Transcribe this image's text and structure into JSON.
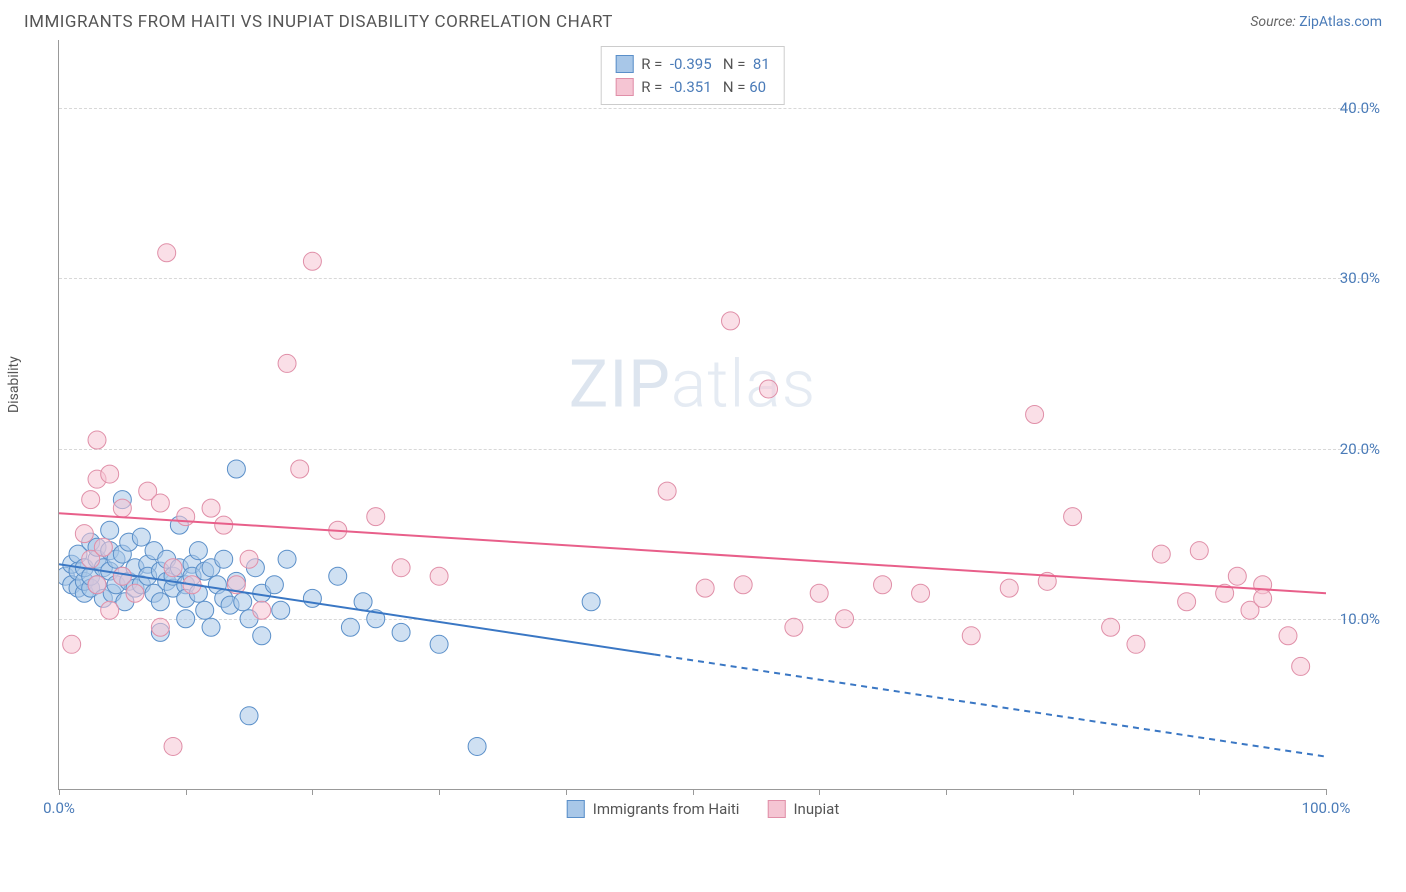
{
  "header": {
    "title": "IMMIGRANTS FROM HAITI VS INUPIAT DISABILITY CORRELATION CHART",
    "source_label": "Source:",
    "source_value": "ZipAtlas.com"
  },
  "chart": {
    "type": "scatter",
    "y_axis_label": "Disability",
    "x_range": [
      0,
      100
    ],
    "y_range": [
      0,
      44
    ],
    "x_ticks": [
      0,
      10,
      20,
      30,
      40,
      50,
      60,
      70,
      80,
      90,
      100
    ],
    "x_tick_labels": {
      "0": "0.0%",
      "100": "100.0%"
    },
    "y_gridlines": [
      10,
      20,
      30,
      40
    ],
    "y_tick_labels": {
      "10": "10.0%",
      "20": "20.0%",
      "30": "30.0%",
      "40": "40.0%"
    },
    "grid_color": "#d8d8d8",
    "background_color": "#ffffff",
    "watermark_text_1": "ZIP",
    "watermark_text_2": "atlas",
    "series": [
      {
        "name": "Immigrants from Haiti",
        "fill_color": "#a8c7e8",
        "stroke_color": "#5a8fc9",
        "fill_opacity": 0.55,
        "marker_radius": 9,
        "R": "-0.395",
        "N": "81",
        "trend": {
          "x1": 0,
          "y1": 13.2,
          "x2": 47,
          "y2": 7.9,
          "x3": 100,
          "y3": 1.9,
          "dash_from": 47,
          "color": "#3a77c4",
          "width": 2
        },
        "points": [
          [
            0.5,
            12.5
          ],
          [
            1,
            12.0
          ],
          [
            1,
            13.2
          ],
          [
            1.5,
            11.8
          ],
          [
            1.5,
            12.8
          ],
          [
            1.5,
            13.8
          ],
          [
            2,
            11.5
          ],
          [
            2,
            12.2
          ],
          [
            2,
            13.0
          ],
          [
            2.5,
            14.5
          ],
          [
            2.5,
            11.8
          ],
          [
            2.5,
            12.5
          ],
          [
            3,
            12.0
          ],
          [
            3,
            13.5
          ],
          [
            3,
            14.2
          ],
          [
            3.5,
            11.2
          ],
          [
            3.5,
            13.0
          ],
          [
            4,
            12.8
          ],
          [
            4,
            14.0
          ],
          [
            4,
            15.2
          ],
          [
            4.2,
            11.5
          ],
          [
            4.5,
            13.5
          ],
          [
            4.5,
            12.0
          ],
          [
            5,
            12.5
          ],
          [
            5,
            13.8
          ],
          [
            5,
            17.0
          ],
          [
            5.2,
            11.0
          ],
          [
            5.5,
            12.2
          ],
          [
            5.5,
            14.5
          ],
          [
            6,
            13.0
          ],
          [
            6,
            11.8
          ],
          [
            6.5,
            12.0
          ],
          [
            6.5,
            14.8
          ],
          [
            7,
            13.2
          ],
          [
            7,
            12.5
          ],
          [
            7.5,
            11.5
          ],
          [
            7.5,
            14.0
          ],
          [
            8,
            12.8
          ],
          [
            8,
            11.0
          ],
          [
            8,
            9.2
          ],
          [
            8.5,
            12.2
          ],
          [
            8.5,
            13.5
          ],
          [
            9,
            11.8
          ],
          [
            9,
            12.5
          ],
          [
            9.5,
            15.5
          ],
          [
            9.5,
            13.0
          ],
          [
            10,
            12.0
          ],
          [
            10,
            11.2
          ],
          [
            10,
            10.0
          ],
          [
            10.5,
            13.2
          ],
          [
            10.5,
            12.5
          ],
          [
            11,
            14.0
          ],
          [
            11,
            11.5
          ],
          [
            11.5,
            10.5
          ],
          [
            11.5,
            12.8
          ],
          [
            12,
            13.0
          ],
          [
            12,
            9.5
          ],
          [
            12.5,
            12.0
          ],
          [
            13,
            11.2
          ],
          [
            13,
            13.5
          ],
          [
            13.5,
            10.8
          ],
          [
            14,
            12.2
          ],
          [
            14,
            18.8
          ],
          [
            14.5,
            11.0
          ],
          [
            15,
            10.0
          ],
          [
            15.5,
            13.0
          ],
          [
            16,
            11.5
          ],
          [
            16,
            9.0
          ],
          [
            17,
            12.0
          ],
          [
            17.5,
            10.5
          ],
          [
            18,
            13.5
          ],
          [
            15,
            4.3
          ],
          [
            20,
            11.2
          ],
          [
            22,
            12.5
          ],
          [
            23,
            9.5
          ],
          [
            24,
            11.0
          ],
          [
            25,
            10.0
          ],
          [
            27,
            9.2
          ],
          [
            30,
            8.5
          ],
          [
            33,
            2.5
          ],
          [
            42,
            11.0
          ]
        ]
      },
      {
        "name": "Inupiat",
        "fill_color": "#f5c5d3",
        "stroke_color": "#e08fa8",
        "fill_opacity": 0.55,
        "marker_radius": 9,
        "R": "-0.351",
        "N": "60",
        "trend": {
          "x1": 0,
          "y1": 16.2,
          "x2": 100,
          "y2": 11.5,
          "color": "#e85f8a",
          "width": 2
        },
        "points": [
          [
            1,
            8.5
          ],
          [
            2,
            15.0
          ],
          [
            2.5,
            13.5
          ],
          [
            2.5,
            17.0
          ],
          [
            3,
            18.2
          ],
          [
            3,
            20.5
          ],
          [
            3,
            12.0
          ],
          [
            3.5,
            14.2
          ],
          [
            4,
            10.5
          ],
          [
            4,
            18.5
          ],
          [
            5,
            16.5
          ],
          [
            5,
            12.5
          ],
          [
            6,
            11.5
          ],
          [
            7,
            17.5
          ],
          [
            8,
            16.8
          ],
          [
            8,
            9.5
          ],
          [
            8.5,
            31.5
          ],
          [
            9,
            13.0
          ],
          [
            9,
            2.5
          ],
          [
            10,
            16.0
          ],
          [
            10.5,
            12.0
          ],
          [
            12,
            16.5
          ],
          [
            13,
            15.5
          ],
          [
            14,
            12.0
          ],
          [
            15,
            13.5
          ],
          [
            16,
            10.5
          ],
          [
            18,
            25.0
          ],
          [
            19,
            18.8
          ],
          [
            20,
            31.0
          ],
          [
            22,
            15.2
          ],
          [
            25,
            16.0
          ],
          [
            27,
            13.0
          ],
          [
            30,
            12.5
          ],
          [
            48,
            17.5
          ],
          [
            51,
            11.8
          ],
          [
            53,
            27.5
          ],
          [
            54,
            12.0
          ],
          [
            56,
            23.5
          ],
          [
            58,
            9.5
          ],
          [
            60,
            11.5
          ],
          [
            62,
            10.0
          ],
          [
            65,
            12.0
          ],
          [
            68,
            11.5
          ],
          [
            72,
            9.0
          ],
          [
            75,
            11.8
          ],
          [
            77,
            22.0
          ],
          [
            78,
            12.2
          ],
          [
            80,
            16.0
          ],
          [
            83,
            9.5
          ],
          [
            85,
            8.5
          ],
          [
            87,
            13.8
          ],
          [
            89,
            11.0
          ],
          [
            90,
            14.0
          ],
          [
            92,
            11.5
          ],
          [
            93,
            12.5
          ],
          [
            94,
            10.5
          ],
          [
            95,
            12.0
          ],
          [
            95,
            11.2
          ],
          [
            97,
            9.0
          ],
          [
            98,
            7.2
          ]
        ]
      }
    ]
  },
  "legend_bottom": [
    {
      "label": "Immigrants from Haiti",
      "fill": "#a8c7e8",
      "stroke": "#5a8fc9"
    },
    {
      "label": "Inupiat",
      "fill": "#f5c5d3",
      "stroke": "#e08fa8"
    }
  ]
}
